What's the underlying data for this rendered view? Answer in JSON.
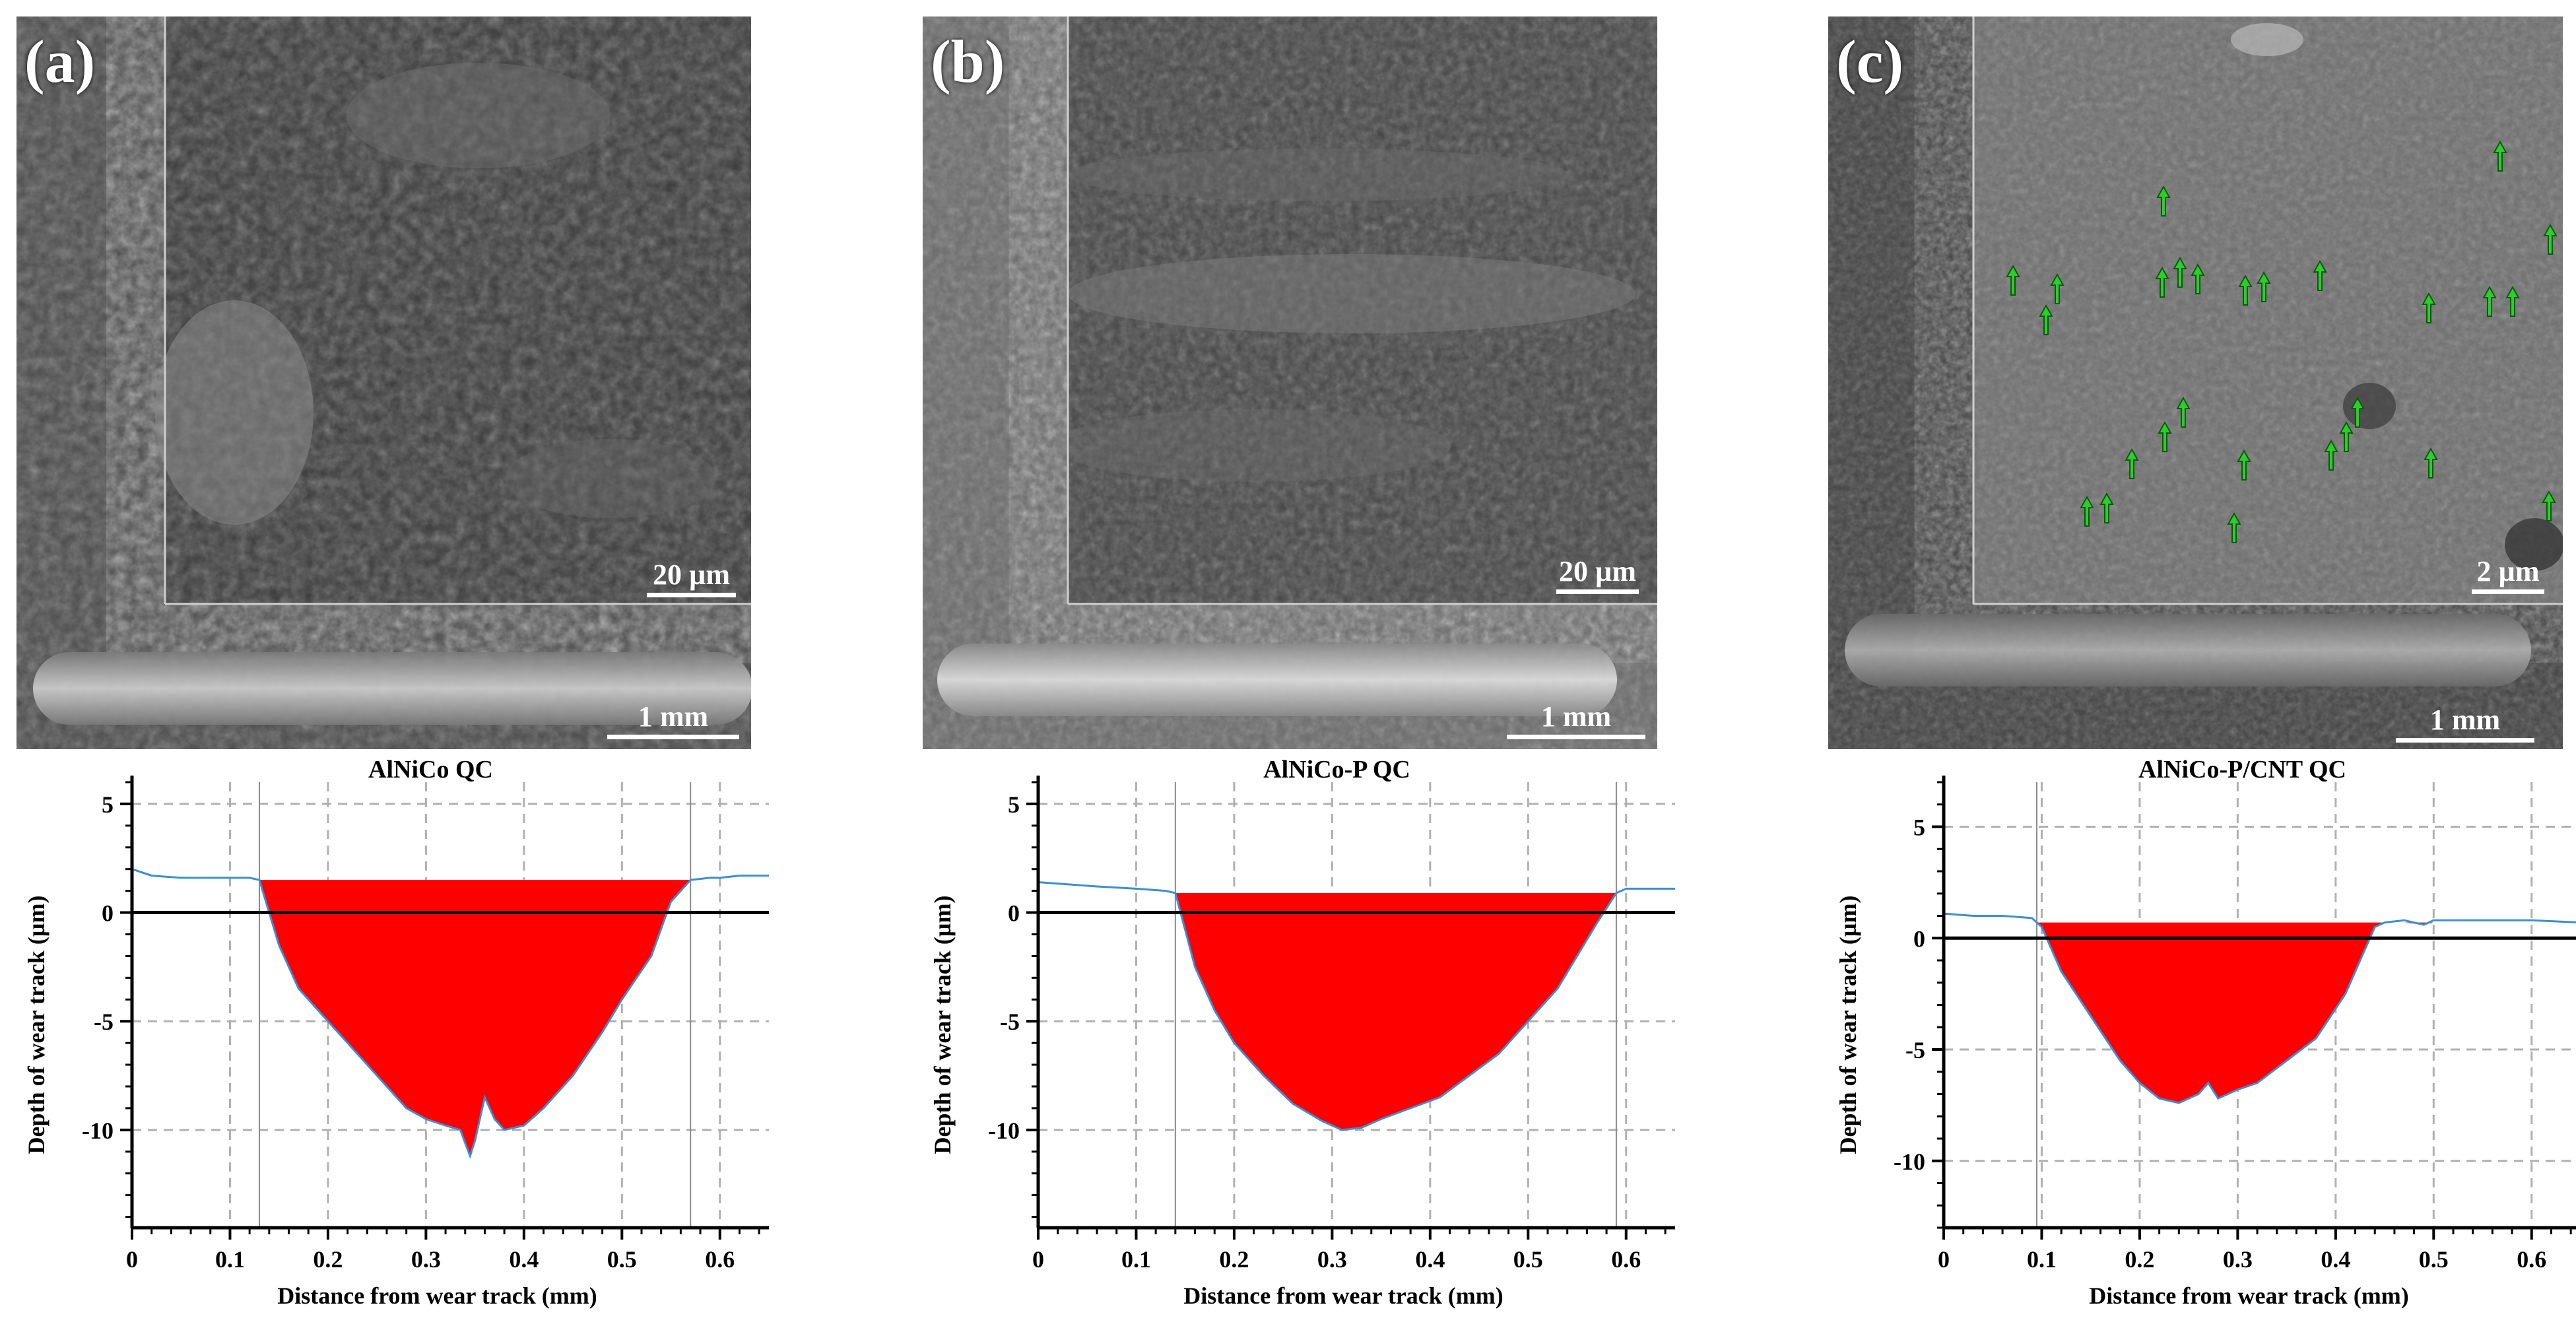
{
  "panels": [
    {
      "id": "a",
      "letter": "(a)",
      "inset_scale": "20 µm",
      "track_scale": "1 mm",
      "chart_title": "AlNiCo QC",
      "colors": {
        "bg": "#3c3c3c",
        "inset": "#4a4a4a",
        "debris": "#b8b8b8"
      }
    },
    {
      "id": "b",
      "letter": "(b)",
      "inset_scale": "20 µm",
      "track_scale": "1 mm",
      "chart_title": "AlNiCo-P QC",
      "colors": {
        "bg": "#5a5a5a",
        "inset": "#4e4e4e",
        "debris": "#a8a8a8"
      }
    },
    {
      "id": "c",
      "letter": "(c)",
      "inset_scale": "2 µm",
      "track_scale": "1 mm",
      "chart_title": "AlNiCo-P/CNT QC",
      "colors": {
        "bg": "#3e3e3e",
        "inset": "#6a6a6a",
        "debris": "#9a9a9a",
        "arrow": "#2ecc2e"
      }
    }
  ],
  "chart_data": [
    {
      "type": "area",
      "title": "AlNiCo QC",
      "xlabel": "Distance from wear track (mm)",
      "ylabel": "Depth of wear track (µm)",
      "xlim": [
        0,
        0.65
      ],
      "ylim": [
        -14.5,
        6
      ],
      "xticks": [
        0,
        0.1,
        0.2,
        0.3,
        0.4,
        0.5,
        0.6
      ],
      "yticks": [
        5,
        0,
        -5,
        -10
      ],
      "grid": true,
      "fill_color": "#ff0000",
      "profile_color": "#3a8fd6",
      "fill_level": 1.5,
      "x": [
        0,
        0.02,
        0.05,
        0.1,
        0.12,
        0.13,
        0.15,
        0.17,
        0.2,
        0.22,
        0.25,
        0.28,
        0.3,
        0.32,
        0.335,
        0.345,
        0.35,
        0.36,
        0.37,
        0.38,
        0.4,
        0.42,
        0.45,
        0.48,
        0.5,
        0.53,
        0.55,
        0.57,
        0.59,
        0.6,
        0.62,
        0.65
      ],
      "y": [
        2.0,
        1.7,
        1.6,
        1.6,
        1.6,
        1.5,
        -1.5,
        -3.5,
        -5.0,
        -6.0,
        -7.5,
        -9.0,
        -9.5,
        -9.8,
        -10.0,
        -11.2,
        -10.5,
        -8.5,
        -9.5,
        -10.0,
        -9.8,
        -9.0,
        -7.5,
        -5.5,
        -4.0,
        -2.0,
        0.5,
        1.5,
        1.6,
        1.6,
        1.7,
        1.7
      ]
    },
    {
      "type": "area",
      "title": "AlNiCo-P QC",
      "xlabel": "Distance from wear track (mm)",
      "ylabel": "Depth of wear track (µm)",
      "xlim": [
        0,
        0.65
      ],
      "ylim": [
        -14.5,
        6
      ],
      "xticks": [
        0,
        0.1,
        0.2,
        0.3,
        0.4,
        0.5,
        0.6
      ],
      "yticks": [
        5,
        0,
        -5,
        -10
      ],
      "grid": true,
      "fill_color": "#ff0000",
      "profile_color": "#3a8fd6",
      "fill_level": 0.9,
      "x": [
        0,
        0.03,
        0.06,
        0.1,
        0.13,
        0.14,
        0.16,
        0.18,
        0.2,
        0.23,
        0.26,
        0.29,
        0.31,
        0.33,
        0.35,
        0.38,
        0.41,
        0.44,
        0.47,
        0.5,
        0.53,
        0.55,
        0.57,
        0.59,
        0.6,
        0.62,
        0.65
      ],
      "y": [
        1.4,
        1.3,
        1.2,
        1.1,
        1.0,
        0.9,
        -2.5,
        -4.5,
        -6.0,
        -7.5,
        -8.8,
        -9.6,
        -10.0,
        -9.9,
        -9.5,
        -9.0,
        -8.5,
        -7.5,
        -6.5,
        -5.0,
        -3.5,
        -2.0,
        -0.5,
        0.9,
        1.1,
        1.1,
        1.1
      ]
    },
    {
      "type": "area",
      "title": "AlNiCo-P/CNT QC",
      "xlabel": "Distance from wear track (mm)",
      "ylabel": "Depth of wear track (µm)",
      "xlim": [
        0,
        0.65
      ],
      "ylim": [
        -13,
        7
      ],
      "xticks": [
        0,
        0.1,
        0.2,
        0.3,
        0.4,
        0.5,
        0.6
      ],
      "yticks": [
        5,
        0,
        -5,
        -10
      ],
      "grid": true,
      "fill_color": "#ff0000",
      "profile_color": "#3a8fd6",
      "fill_level": 0.7,
      "x": [
        0,
        0.03,
        0.06,
        0.09,
        0.1,
        0.12,
        0.15,
        0.18,
        0.2,
        0.22,
        0.24,
        0.26,
        0.27,
        0.28,
        0.3,
        0.32,
        0.35,
        0.38,
        0.41,
        0.43,
        0.44,
        0.45,
        0.47,
        0.49,
        0.5,
        0.53,
        0.56,
        0.6,
        0.65
      ],
      "y": [
        1.1,
        1.0,
        1.0,
        0.9,
        0.5,
        -1.5,
        -3.5,
        -5.5,
        -6.5,
        -7.2,
        -7.4,
        -7.0,
        -6.5,
        -7.2,
        -6.8,
        -6.5,
        -5.5,
        -4.5,
        -2.5,
        -0.5,
        0.5,
        0.7,
        0.8,
        0.6,
        0.8,
        0.8,
        0.8,
        0.8,
        0.7
      ]
    }
  ]
}
